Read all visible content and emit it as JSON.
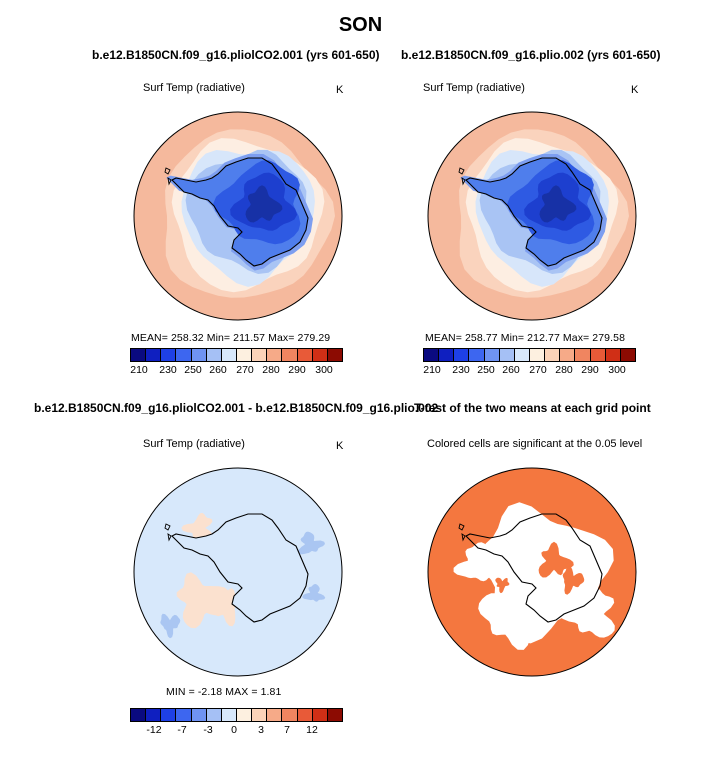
{
  "figure_title": "SON",
  "panels": {
    "p1": {
      "title": "b.e12.B1850CN.f09_g16.pliolCO2.001 (yrs 601-650)",
      "subtitle": "Surf Temp (radiative)",
      "units": "K",
      "stats_text": "MEAN= 258.32   Min= 211.57   Max= 279.29"
    },
    "p2": {
      "title": "b.e12.B1850CN.f09_g16.plio.002 (yrs 601-650)",
      "subtitle": "Surf Temp (radiative)",
      "units": "K",
      "stats_text": "MEAN= 258.77   Min= 212.77   Max= 279.58"
    },
    "p3": {
      "title": "b.e12.B1850CN.f09_g16.pliolCO2.001 - b.e12.B1850CN.f09_g16.plio.002",
      "subtitle": "Surf Temp (radiative)",
      "units": "K",
      "stats_text": "MIN =  -2.18  MAX =   1.81"
    },
    "p4": {
      "title": "T-test of the two means at each grid point",
      "subtitle": "Colored cells are significant at the 0.05 level"
    }
  },
  "colorbar_abs": {
    "colors": [
      "#0a0a80",
      "#0f1fc0",
      "#1e40e6",
      "#3d66f0",
      "#6f93f2",
      "#a5c0f5",
      "#d8e8fb",
      "#fdf0e0",
      "#fbd3b8",
      "#f6aa88",
      "#f08560",
      "#e85a38",
      "#d02f16",
      "#8c0b02"
    ],
    "tick_labels": [
      "210",
      "230",
      "250",
      "260",
      "270",
      "280",
      "290",
      "300"
    ]
  },
  "colorbar_diff": {
    "colors": [
      "#0a0a80",
      "#0f1fc0",
      "#1e40e6",
      "#3d66f0",
      "#6f93f2",
      "#a5c0f5",
      "#d8e8fb",
      "#fdf0e0",
      "#fbd3b8",
      "#f6aa88",
      "#f08560",
      "#e85a38",
      "#d02f16",
      "#8c0b02"
    ],
    "tick_labels": [
      "-12",
      "-7",
      "-3",
      "0",
      "3",
      "7",
      "12"
    ]
  },
  "map_colors": {
    "ocean_outer": "#f5b99d",
    "ring_warm2": "#fad3bd",
    "ring_warm1": "#fdeee2",
    "ring_cool1": "#d7e6fa",
    "ring_cool2": "#a9c4f4",
    "ring_cool3": "#7d9ef0",
    "land_1": "#4f7eec",
    "land_2": "#2e5ae3",
    "land_3": "#1d3fcf",
    "land_4": "#1731a6",
    "diff_bg": "#d7e8fb",
    "diff_warm": "#fbe1cf",
    "diff_cool": "#aac6f2",
    "sig_color": "#f4773f"
  }
}
